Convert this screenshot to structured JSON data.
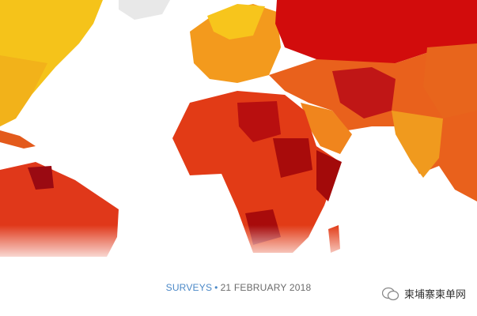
{
  "caption": {
    "category": "SURVEYS",
    "separator": "•",
    "date": "21 FEBRUARY 2018"
  },
  "watermark": "柬埔寨柬单网"
}
